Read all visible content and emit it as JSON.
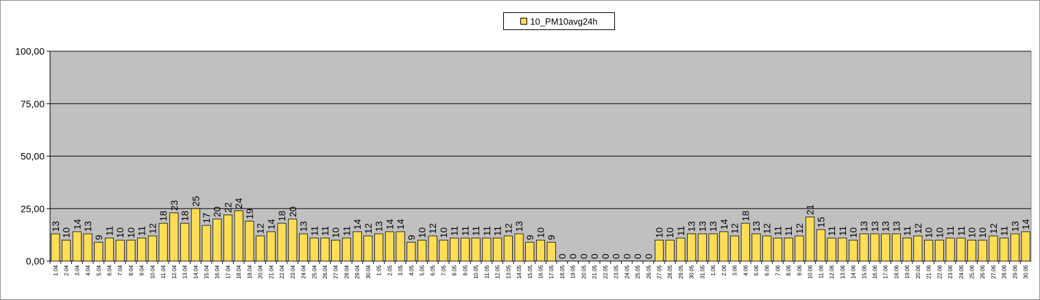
{
  "chart_data": {
    "type": "bar",
    "title": "",
    "xlabel": "",
    "ylabel": "",
    "ylim": [
      0,
      100
    ],
    "yticks": [
      "0,00",
      "25,00",
      "50,00",
      "75,00",
      "100,00"
    ],
    "ytick_values": [
      0,
      25,
      50,
      75,
      100
    ],
    "grid": true,
    "legend_position": "top-center",
    "plot_background": "#c0c0c0",
    "bar_color": "#ffdd55",
    "bar_edge_color": "#000000",
    "categories": [
      "1.04",
      "2.04",
      "3.04",
      "4.04",
      "5.04",
      "6.04",
      "7.04",
      "8.04",
      "9.04",
      "10.04",
      "11.04",
      "12.04",
      "13.04",
      "14.04",
      "15.04",
      "16.04",
      "17.04",
      "18.04",
      "19.04",
      "20.04",
      "21.04",
      "22.04",
      "23.04",
      "24.04",
      "25.04",
      "26.04",
      "27.04",
      "28.04",
      "29.04",
      "30.04",
      "1.05",
      "2.05",
      "3.05",
      "4.05",
      "5.05",
      "6.05",
      "7.05",
      "8.05",
      "9.05",
      "10.05",
      "11.05",
      "12.05",
      "13.05",
      "14.05",
      "15.05",
      "16.05",
      "17.05",
      "18.05",
      "19.05",
      "20.05",
      "21.05",
      "22.05",
      "23.05",
      "24.05",
      "25.05",
      "26.05",
      "27.05",
      "28.05",
      "29.05",
      "30.05",
      "31.05",
      "1.06",
      "2.06",
      "3.06",
      "4.06",
      "5.06",
      "6.06",
      "7.06",
      "8.06",
      "9.06",
      "10.06",
      "11.06",
      "12.06",
      "13.06",
      "14.06",
      "15.06",
      "16.06",
      "17.06",
      "18.06",
      "19.06",
      "20.06",
      "21.06",
      "22.06",
      "23.06",
      "24.06",
      "25.06",
      "26.06",
      "27.06",
      "28.06",
      "29.06",
      "30.06"
    ],
    "series": [
      {
        "name": "10_PM10avg24h",
        "values": [
          13,
          10,
          14,
          13,
          9,
          11,
          10,
          10,
          11,
          12,
          18,
          23,
          18,
          25,
          17,
          20,
          22,
          24,
          19,
          12,
          14,
          18,
          20,
          13,
          11,
          11,
          10,
          11,
          14,
          12,
          13,
          14,
          14,
          9,
          10,
          12,
          10,
          11,
          11,
          11,
          11,
          11,
          12,
          13,
          9,
          10,
          9,
          0,
          0,
          0,
          0,
          0,
          0,
          0,
          0,
          0,
          10,
          10,
          11,
          13,
          13,
          13,
          14,
          12,
          18,
          13,
          12,
          11,
          11,
          12,
          21,
          15,
          11,
          11,
          10,
          13,
          13,
          13,
          13,
          11,
          12,
          10,
          10,
          11,
          11,
          10,
          10,
          12,
          11,
          13,
          14
        ]
      }
    ]
  }
}
